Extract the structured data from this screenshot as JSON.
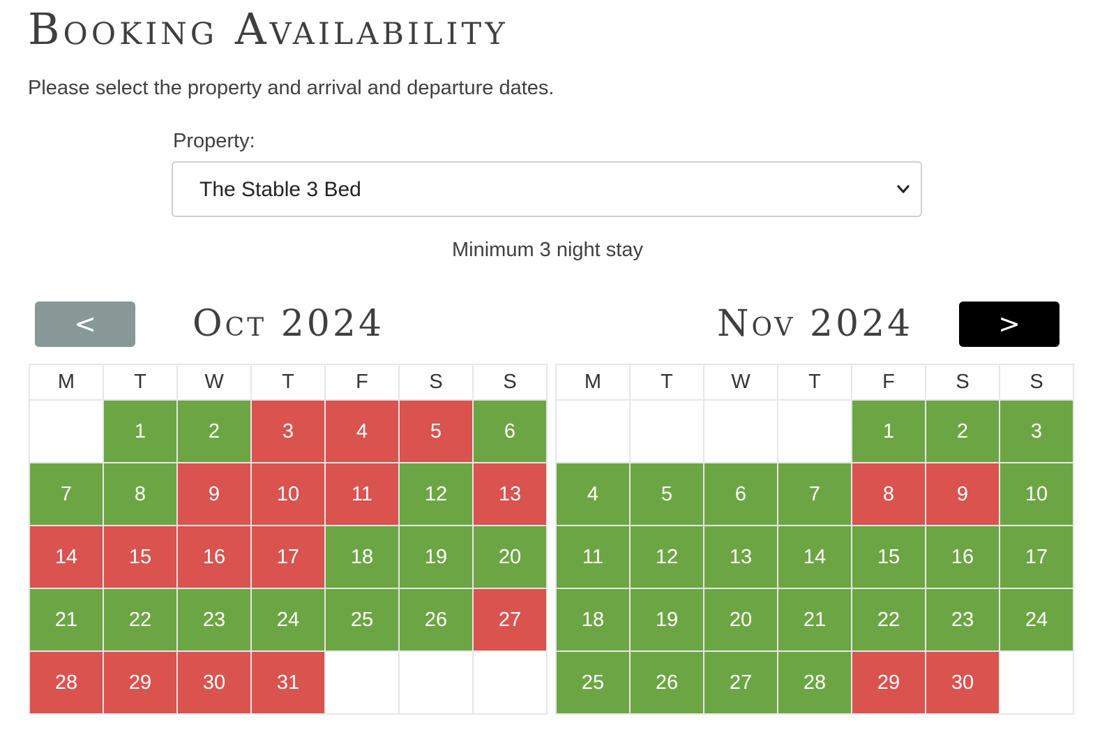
{
  "page": {
    "title": "Booking Availability",
    "intro": "Please select the property and arrival and departure dates."
  },
  "property": {
    "label": "Property:",
    "selected": "The Stable 3 Bed"
  },
  "min_stay": "Minimum 3 night stay",
  "nav": {
    "prev_label": "<",
    "next_label": ">"
  },
  "colors": {
    "available": "#6ca644",
    "booked": "#d9534f",
    "prev_button": "#879896",
    "next_button": "#000000"
  },
  "calendars": [
    {
      "title": "Oct 2024",
      "weekdays": [
        "M",
        "T",
        "W",
        "T",
        "F",
        "S",
        "S"
      ],
      "weeks": [
        [
          null,
          {
            "day": "1",
            "status": "available"
          },
          {
            "day": "2",
            "status": "available"
          },
          {
            "day": "3",
            "status": "booked"
          },
          {
            "day": "4",
            "status": "booked"
          },
          {
            "day": "5",
            "status": "booked"
          },
          {
            "day": "6",
            "status": "available"
          }
        ],
        [
          {
            "day": "7",
            "status": "available"
          },
          {
            "day": "8",
            "status": "available"
          },
          {
            "day": "9",
            "status": "booked"
          },
          {
            "day": "10",
            "status": "booked"
          },
          {
            "day": "11",
            "status": "booked"
          },
          {
            "day": "12",
            "status": "available"
          },
          {
            "day": "13",
            "status": "booked"
          }
        ],
        [
          {
            "day": "14",
            "status": "booked"
          },
          {
            "day": "15",
            "status": "booked"
          },
          {
            "day": "16",
            "status": "booked"
          },
          {
            "day": "17",
            "status": "booked"
          },
          {
            "day": "18",
            "status": "available"
          },
          {
            "day": "19",
            "status": "available"
          },
          {
            "day": "20",
            "status": "available"
          }
        ],
        [
          {
            "day": "21",
            "status": "available"
          },
          {
            "day": "22",
            "status": "available"
          },
          {
            "day": "23",
            "status": "available"
          },
          {
            "day": "24",
            "status": "available"
          },
          {
            "day": "25",
            "status": "available"
          },
          {
            "day": "26",
            "status": "available"
          },
          {
            "day": "27",
            "status": "booked"
          }
        ],
        [
          {
            "day": "28",
            "status": "booked"
          },
          {
            "day": "29",
            "status": "booked"
          },
          {
            "day": "30",
            "status": "booked"
          },
          {
            "day": "31",
            "status": "booked"
          },
          null,
          null,
          null
        ]
      ]
    },
    {
      "title": "Nov 2024",
      "weekdays": [
        "M",
        "T",
        "W",
        "T",
        "F",
        "S",
        "S"
      ],
      "weeks": [
        [
          null,
          null,
          null,
          null,
          {
            "day": "1",
            "status": "available"
          },
          {
            "day": "2",
            "status": "available"
          },
          {
            "day": "3",
            "status": "available"
          }
        ],
        [
          {
            "day": "4",
            "status": "available"
          },
          {
            "day": "5",
            "status": "available"
          },
          {
            "day": "6",
            "status": "available"
          },
          {
            "day": "7",
            "status": "available"
          },
          {
            "day": "8",
            "status": "booked"
          },
          {
            "day": "9",
            "status": "booked"
          },
          {
            "day": "10",
            "status": "available"
          }
        ],
        [
          {
            "day": "11",
            "status": "available"
          },
          {
            "day": "12",
            "status": "available"
          },
          {
            "day": "13",
            "status": "available"
          },
          {
            "day": "14",
            "status": "available"
          },
          {
            "day": "15",
            "status": "available"
          },
          {
            "day": "16",
            "status": "available"
          },
          {
            "day": "17",
            "status": "available"
          }
        ],
        [
          {
            "day": "18",
            "status": "available"
          },
          {
            "day": "19",
            "status": "available"
          },
          {
            "day": "20",
            "status": "available"
          },
          {
            "day": "21",
            "status": "available"
          },
          {
            "day": "22",
            "status": "available"
          },
          {
            "day": "23",
            "status": "available"
          },
          {
            "day": "24",
            "status": "available"
          }
        ],
        [
          {
            "day": "25",
            "status": "available"
          },
          {
            "day": "26",
            "status": "available"
          },
          {
            "day": "27",
            "status": "available"
          },
          {
            "day": "28",
            "status": "available"
          },
          {
            "day": "29",
            "status": "booked"
          },
          {
            "day": "30",
            "status": "booked"
          },
          null
        ]
      ]
    }
  ]
}
